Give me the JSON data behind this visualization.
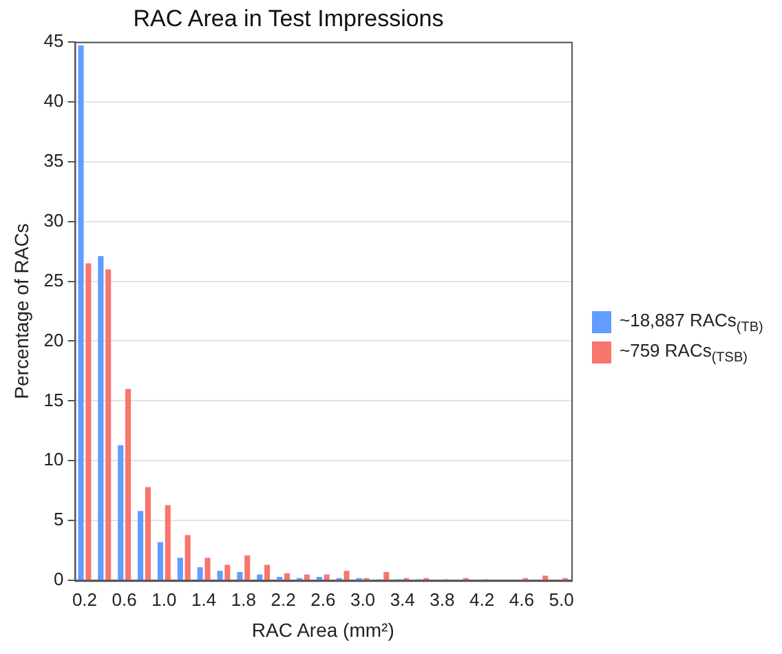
{
  "chart_data": {
    "type": "bar",
    "title": "RAC Area in Test Impressions",
    "xlabel": "RAC Area (mm²)",
    "ylabel": "Percentage of RACs",
    "categories": [
      "0.2",
      null,
      "0.6",
      null,
      "1.0",
      null,
      "1.4",
      null,
      "1.8",
      null,
      "2.2",
      null,
      "2.6",
      null,
      "3.0",
      null,
      "3.4",
      null,
      "3.8",
      null,
      "4.2",
      null,
      "4.6",
      null,
      "5.0"
    ],
    "series": [
      {
        "name": "~18,887 RACs$_{(TB)}$",
        "color": "#619cff",
        "values": [
          44.7,
          27.1,
          11.3,
          5.8,
          3.2,
          1.9,
          1.1,
          0.8,
          0.7,
          0.5,
          0.3,
          0.2,
          0.3,
          0.2,
          0.2,
          0.1,
          0.1,
          0.1,
          0,
          0,
          0,
          0,
          0,
          0,
          0
        ]
      },
      {
        "name": "~759 RACs$_{(TSB)}$",
        "color": "#f8766d",
        "values": [
          26.5,
          26.0,
          16.0,
          7.8,
          6.3,
          3.8,
          1.9,
          1.3,
          2.1,
          1.3,
          0.6,
          0.5,
          0.5,
          0.8,
          0.2,
          0.7,
          0.2,
          0.2,
          0.1,
          0.2,
          0.1,
          0,
          0.2,
          0.4,
          0.2
        ]
      }
    ],
    "ylim": [
      0,
      45
    ],
    "yticks": [
      0,
      5,
      10,
      15,
      20,
      25,
      30,
      35,
      40,
      45
    ],
    "grid": "y",
    "legend": "right"
  }
}
